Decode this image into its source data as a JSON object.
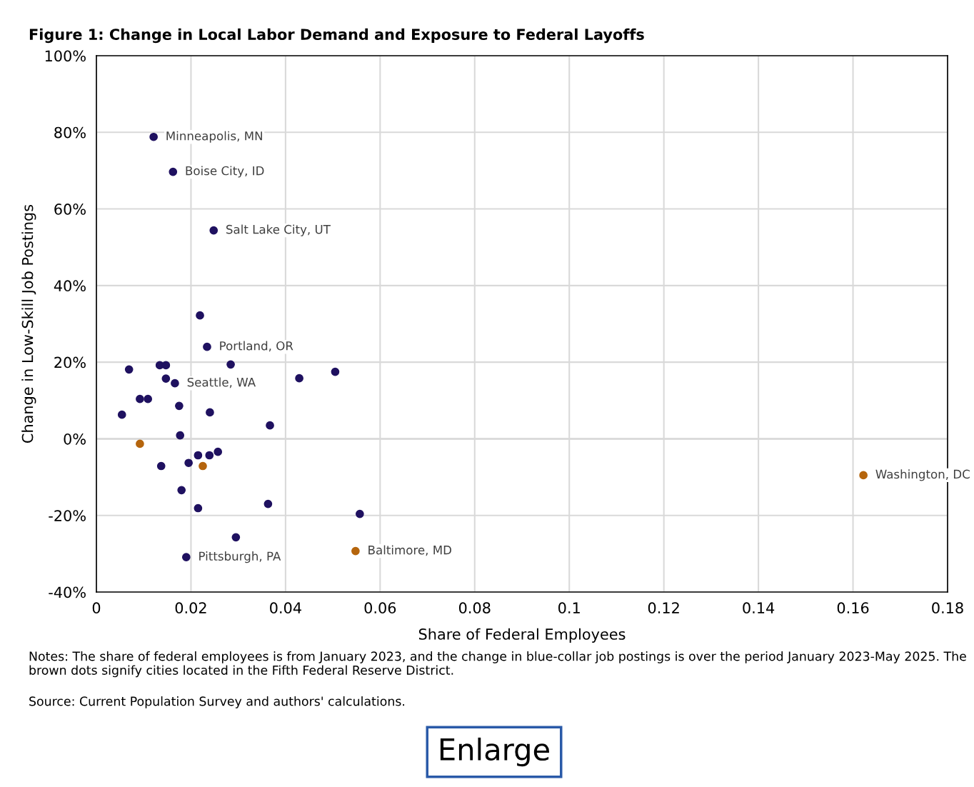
{
  "chart_data": {
    "type": "scatter",
    "title": "Figure 1: Change in Local Labor Demand and Exposure to Federal Layoffs",
    "xlabel": "Share of Federal Employees",
    "ylabel": "Change in Low-Skill Job Postings",
    "xlim": [
      0,
      0.18
    ],
    "xticks": [
      0,
      0.02,
      0.04,
      0.06,
      0.08,
      0.1,
      0.12,
      0.14,
      0.16,
      0.18
    ],
    "ylim": [
      -40,
      100
    ],
    "yticks": [
      {
        "value": -40,
        "label": "-40%"
      },
      {
        "value": -20,
        "label": "-20%"
      },
      {
        "value": 0,
        "label": "0%"
      },
      {
        "value": 20,
        "label": "20%"
      },
      {
        "value": 40,
        "label": "40%"
      },
      {
        "value": 60,
        "label": "60%"
      },
      {
        "value": 80,
        "label": "80%"
      },
      {
        "value": 100,
        "label": "100%"
      }
    ],
    "grid": true,
    "marker": "circle",
    "series": [
      {
        "color": "#1f1160",
        "x": [
          0.0121,
          0.0162,
          0.0248,
          0.0219,
          0.0234,
          0.0069,
          0.0134,
          0.0147,
          0.0284,
          0.0147,
          0.0166,
          0.0429,
          0.0505,
          0.0092,
          0.0109,
          0.0175,
          0.0054,
          0.024,
          0.0367,
          0.0177,
          0.0215,
          0.0239,
          0.0257,
          0.0137,
          0.0195,
          0.018,
          0.0215,
          0.0363,
          0.0557,
          0.0295,
          0.019
        ],
        "values": [
          78.8,
          69.7,
          54.4,
          32.2,
          24.0,
          18.1,
          19.2,
          19.2,
          19.4,
          15.7,
          14.5,
          15.8,
          17.5,
          10.4,
          10.4,
          8.6,
          6.3,
          6.9,
          3.5,
          0.9,
          -4.3,
          -4.3,
          -3.4,
          -7.1,
          -6.3,
          -13.4,
          -18.1,
          -17.0,
          -19.6,
          -25.7,
          -30.9
        ]
      },
      {
        "color": "#b5650d",
        "x": [
          0.0092,
          0.0225,
          0.0548,
          0.1622
        ],
        "values": [
          -1.3,
          -7.1,
          -29.3,
          -9.5
        ]
      }
    ],
    "annotations": [
      {
        "text": "Minneapolis, MN",
        "x": 0.0121,
        "y": 78.8
      },
      {
        "text": "Boise City, ID",
        "x": 0.0162,
        "y": 69.7
      },
      {
        "text": "Salt Lake City, UT",
        "x": 0.0248,
        "y": 54.4
      },
      {
        "text": "Portland, OR",
        "x": 0.0234,
        "y": 24.0
      },
      {
        "text": "Seattle, WA",
        "x": 0.0166,
        "y": 14.5
      },
      {
        "text": "Pittsburgh, PA",
        "x": 0.019,
        "y": -30.9
      },
      {
        "text": "Baltimore, MD",
        "x": 0.0548,
        "y": -29.3
      },
      {
        "text": "Washington, DC",
        "x": 0.1622,
        "y": -9.5
      },
      "Notes: The share of federal employees is from January 2023, and the change in blue-collar job postings is over the period January 2023-May 2025. The brown dots signify cities located in the Fifth Federal Reserve District.",
      "Source: Current Population Survey and authors' calculations.",
      "Enlarge"
    ]
  }
}
